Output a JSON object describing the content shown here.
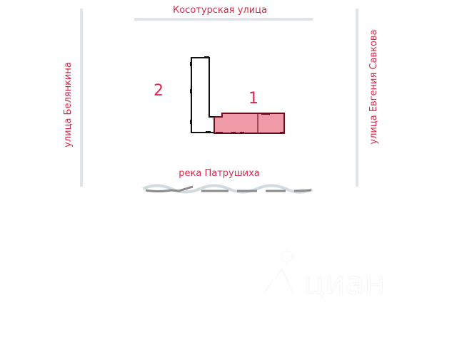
{
  "streets": {
    "top": "Косотурская  улица",
    "left": "улица  Белянкина",
    "right": "улица  Евгения  Савкова",
    "river": "река  Патрушиха"
  },
  "buildings": [
    {
      "number": "1",
      "highlighted": true
    },
    {
      "number": "2",
      "highlighted": false
    }
  ],
  "watermark": "циан",
  "colors": {
    "label": "#d6294a",
    "highlight_fill": "#f09aa8",
    "highlight_stroke": "#6b0f1e",
    "road": "#e1e5e8",
    "river_dark": "#8a8a8a",
    "river_light": "#d3dadd"
  }
}
